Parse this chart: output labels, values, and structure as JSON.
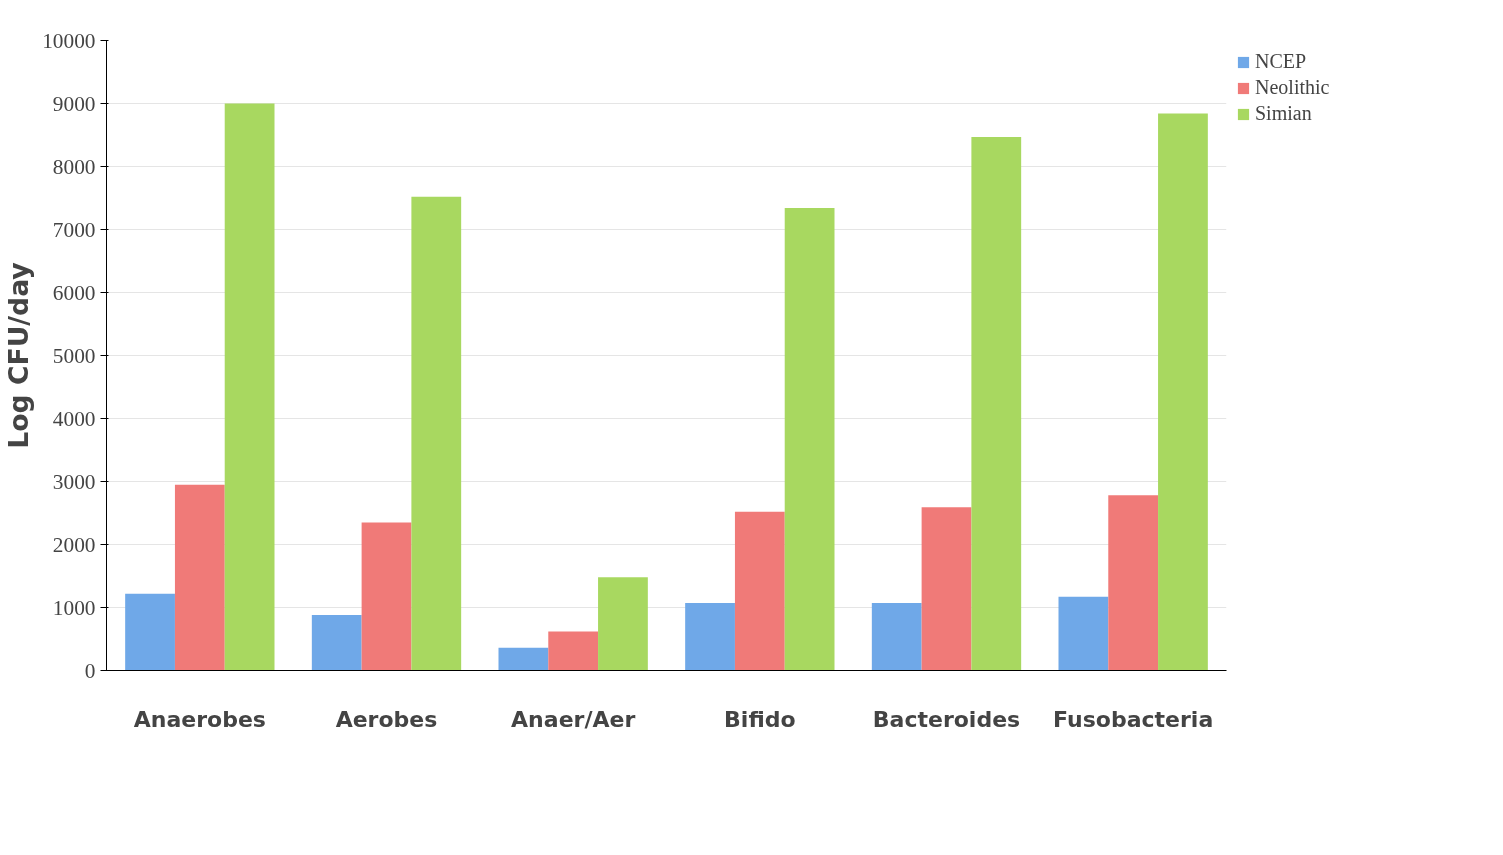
{
  "chart_data": {
    "type": "bar",
    "ylabel": "Log CFU/day",
    "categories": [
      "Anaerobes",
      "Aerobes",
      "Anaer/Aer",
      "Bifido",
      "Bacteroides",
      "Fusobacteria"
    ],
    "series": [
      {
        "name": "NCEP",
        "color": "#6fa8e8",
        "values": [
          1220,
          880,
          360,
          1070,
          1070,
          1170
        ]
      },
      {
        "name": "Neolithic",
        "color": "#f07a78",
        "values": [
          2950,
          2350,
          620,
          2520,
          2590,
          2780
        ]
      },
      {
        "name": "Simian",
        "color": "#a8d860",
        "values": [
          9000,
          7520,
          1480,
          7340,
          8470,
          8840
        ]
      }
    ],
    "ylim": [
      0,
      10000
    ],
    "yticks": [
      0,
      1000,
      2000,
      3000,
      4000,
      5000,
      6000,
      7000,
      8000,
      9000,
      10000
    ],
    "grid": "y",
    "legend": "top right"
  }
}
